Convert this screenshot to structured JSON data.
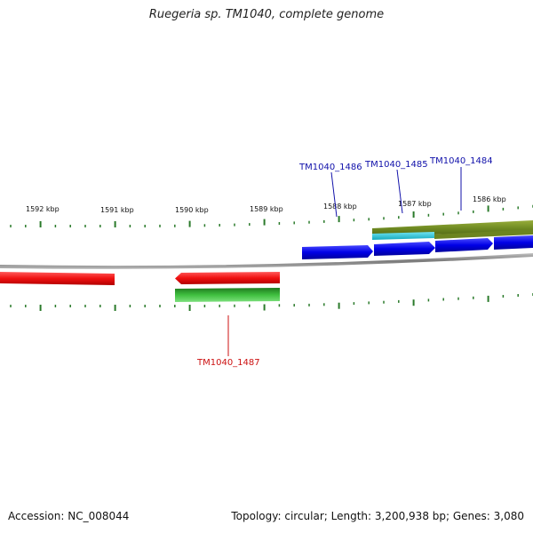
{
  "title": "Ruegeria sp. TM1040, complete genome",
  "footer": {
    "accession_label": "Accession:",
    "accession": "NC_008044",
    "topology_text": "Topology: circular; Length: 3,200,938 bp; Genes: 3,080"
  },
  "ruler": {
    "labels": [
      "1592 kbp",
      "1591 kbp",
      "1590 kbp",
      "1589 kbp",
      "1588 kbp",
      "1587 kbp",
      "1586 kbp"
    ]
  },
  "genes": {
    "tm1040_1486": "TM1040_1486",
    "tm1040_1485": "TM1040_1485",
    "tm1040_1484": "TM1040_1484",
    "tm1040_1487": "TM1040_1487"
  },
  "colors": {
    "forward_cds": "#1010e0",
    "reverse_cds": "#ee1111",
    "green_feature": "#2e9a2e",
    "olive_feature": "#7a8f2a",
    "cyan_feature": "#22c3d6",
    "forward_label": "#1010aa",
    "reverse_label": "#cc1111",
    "tick": "#2a7a2a",
    "backbone": "#8a8a8a"
  }
}
